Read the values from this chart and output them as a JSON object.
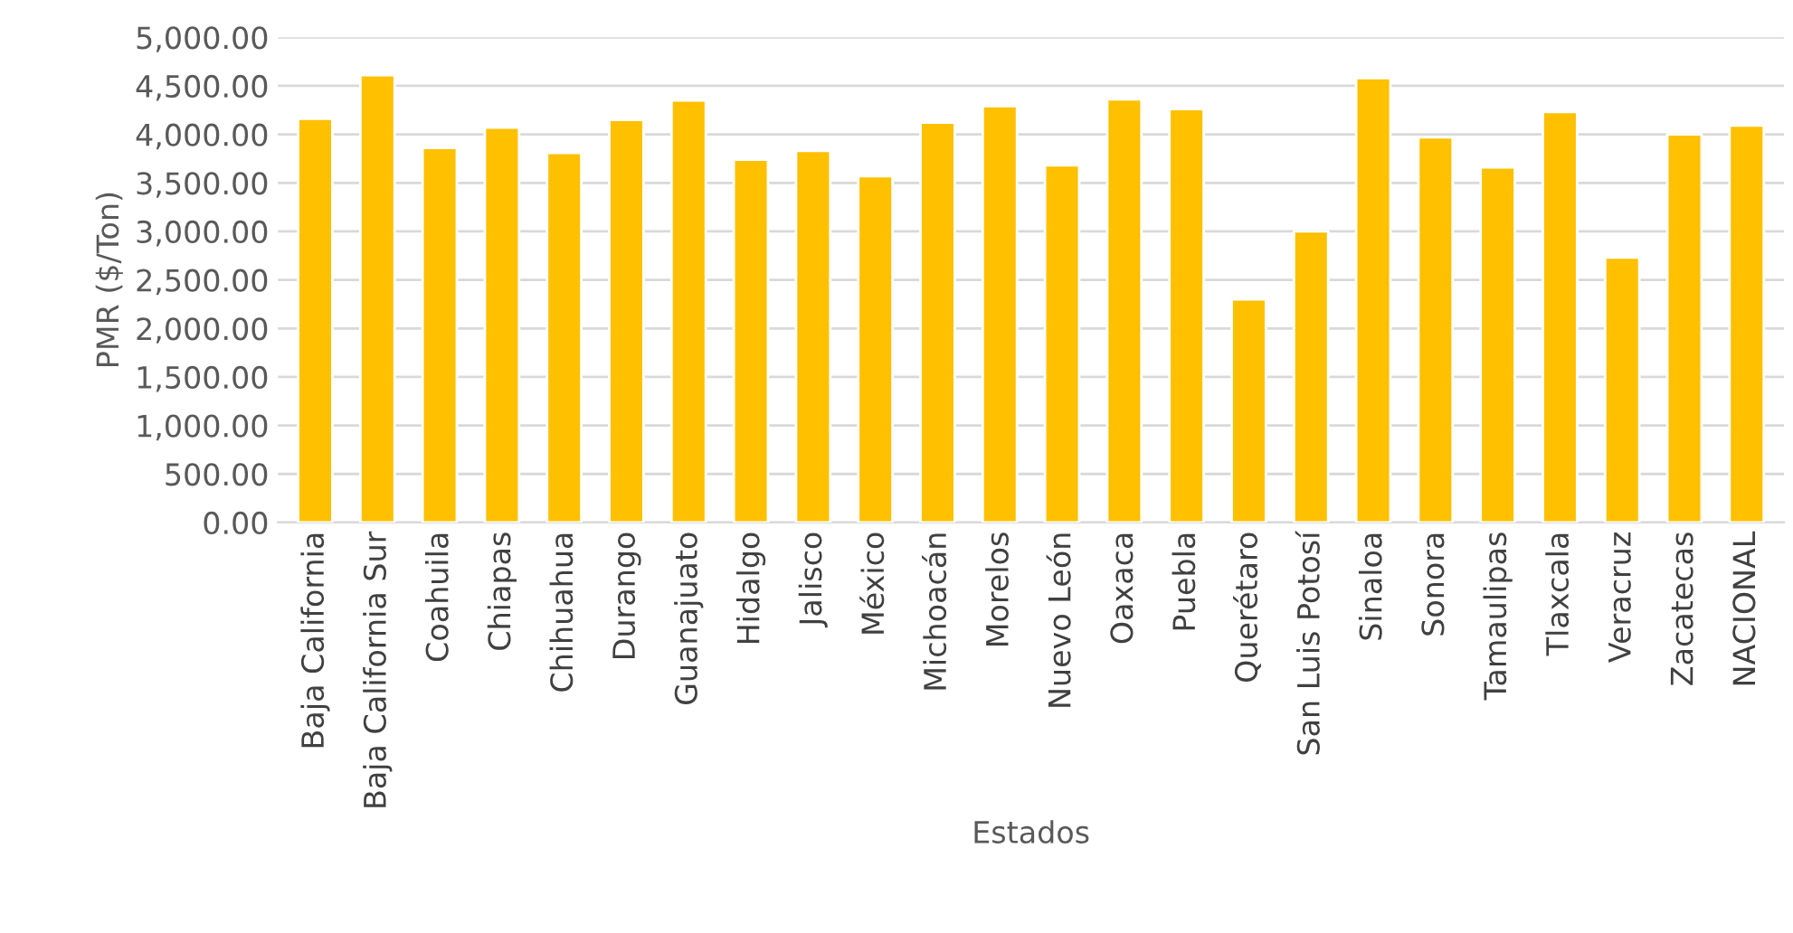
{
  "chart_data": {
    "type": "bar",
    "xlabel": "Estados",
    "ylabel": "PMR ($/Ton)",
    "categories": [
      "Baja California",
      "Baja California Sur",
      "Coahuila",
      "Chiapas",
      "Chihuahua",
      "Durango",
      "Guanajuato",
      "Hidalgo",
      "Jalisco",
      "México",
      "Michoacán",
      "Morelos",
      "Nuevo León",
      "Oaxaca",
      "Puebla",
      "Querétaro",
      "San Luis Potosí",
      "Sinaloa",
      "Sonora",
      "Tamaulipas",
      "Tlaxcala",
      "Veracruz",
      "Zacatecas",
      "NACIONAL"
    ],
    "values": [
      4160,
      4610,
      3860,
      4070,
      3810,
      4150,
      4350,
      3740,
      3830,
      3570,
      4120,
      4290,
      3680,
      4360,
      4260,
      2300,
      3000,
      4580,
      3970,
      3660,
      4230,
      2730,
      4000,
      4090
    ],
    "color": "#ffc000",
    "ylim": [
      0,
      5000
    ],
    "yticks": [
      {
        "value": 0,
        "label": "0.00"
      },
      {
        "value": 500,
        "label": "500.00"
      },
      {
        "value": 1000,
        "label": "1,000.00"
      },
      {
        "value": 1500,
        "label": "1,500.00"
      },
      {
        "value": 2000,
        "label": "2,000.00"
      },
      {
        "value": 2500,
        "label": "2,500.00"
      },
      {
        "value": 3000,
        "label": "3,000.00"
      },
      {
        "value": 3500,
        "label": "3,500.00"
      },
      {
        "value": 4000,
        "label": "4,000.00"
      },
      {
        "value": 4500,
        "label": "4,500.00"
      },
      {
        "value": 5000,
        "label": "5,000.00"
      }
    ],
    "grid": "y"
  }
}
